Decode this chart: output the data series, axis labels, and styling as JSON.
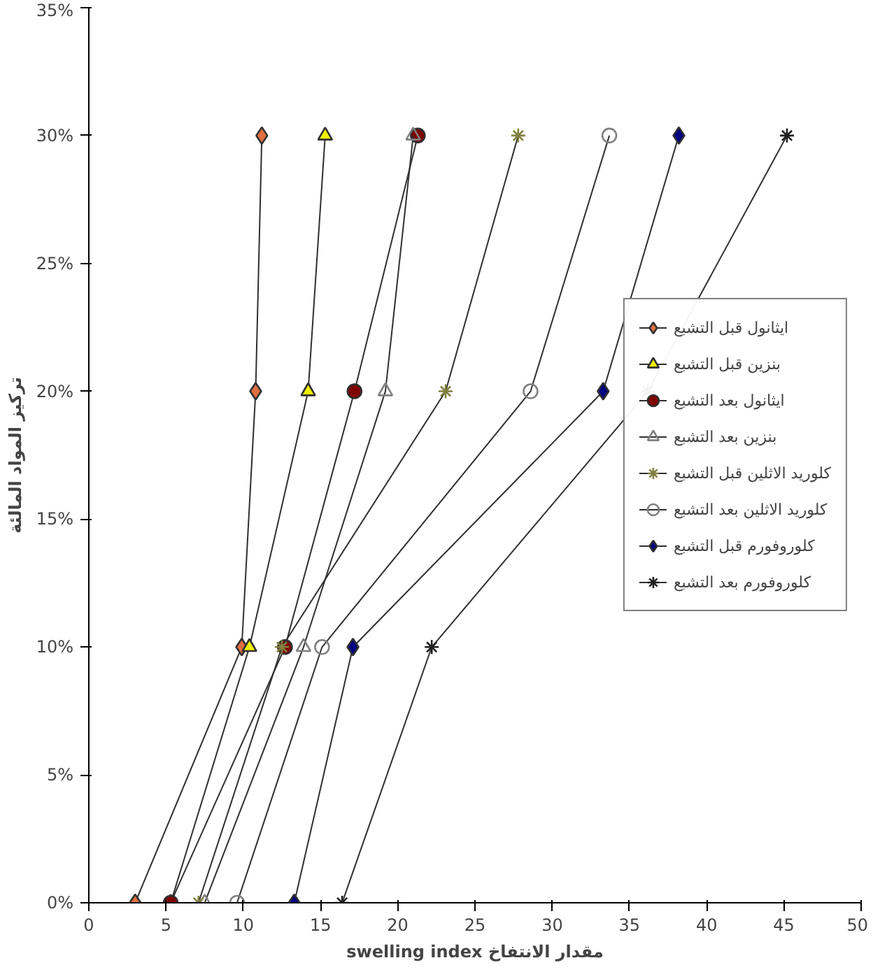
{
  "chart_data": {
    "type": "line",
    "xlabel": "swelling index مقدار الانتفاخ",
    "ylabel": "تركيز المواد المالئة",
    "xlim": [
      0,
      50
    ],
    "xticks": [
      0,
      5,
      10,
      15,
      20,
      25,
      30,
      35,
      40,
      45,
      50
    ],
    "ylim": [
      0,
      35
    ],
    "yticks": [
      {
        "value": 0,
        "label": "0%"
      },
      {
        "value": 5,
        "label": "5%"
      },
      {
        "value": 10,
        "label": "10%"
      },
      {
        "value": 15,
        "label": "15%"
      },
      {
        "value": 20,
        "label": "20%"
      },
      {
        "value": 25,
        "label": "25%"
      },
      {
        "value": 30,
        "label": "30%"
      },
      {
        "value": 35,
        "label": "35%"
      }
    ],
    "grid": false,
    "legend": "right",
    "series": [
      {
        "name": "ايثانول قبل التشبع",
        "color": "#e07040",
        "marker": "diamond",
        "x": [
          3.0,
          9.9,
          10.8,
          11.2
        ],
        "values": [
          0,
          10,
          20,
          30
        ]
      },
      {
        "name": "بنزين قبل التشبع",
        "color": "#f0f000",
        "marker": "triangle",
        "x": [
          5.3,
          10.4,
          14.2,
          15.3
        ],
        "values": [
          0,
          10,
          20,
          30
        ]
      },
      {
        "name": "ايثانول بعد التشبع",
        "color": "#800000",
        "marker": "circle",
        "x": [
          5.3,
          12.7,
          17.2,
          21.3
        ],
        "values": [
          0,
          10,
          20,
          30
        ]
      },
      {
        "name": "بنزين بعد التشبع",
        "color": "#808080",
        "marker": "triangle",
        "x": [
          7.5,
          13.9,
          19.2,
          21.0
        ],
        "values": [
          0,
          10,
          20,
          30
        ]
      },
      {
        "name": "كلوريد الاثلين قبل التشبع",
        "color": "#808040",
        "marker": "cross",
        "x": [
          7.1,
          12.5,
          23.1,
          27.8
        ],
        "values": [
          0,
          10,
          20,
          30
        ]
      },
      {
        "name": "كلوريد الاثلين بعد التشبع",
        "color": "#808080",
        "marker": "circle",
        "x": [
          9.6,
          15.1,
          28.6,
          33.7
        ],
        "values": [
          0,
          10,
          20,
          30
        ]
      },
      {
        "name": "كلوروفورم قبل التشبع",
        "color": "#000080",
        "marker": "diamond",
        "x": [
          13.3,
          17.1,
          33.3,
          38.2
        ],
        "values": [
          0,
          10,
          20,
          30
        ]
      },
      {
        "name": "كلوروفورم بعد التشبع",
        "color": "#202020",
        "marker": "cross",
        "x": [
          16.4,
          22.2,
          36.2,
          45.2
        ],
        "values": [
          0,
          10,
          20,
          30
        ]
      }
    ]
  }
}
